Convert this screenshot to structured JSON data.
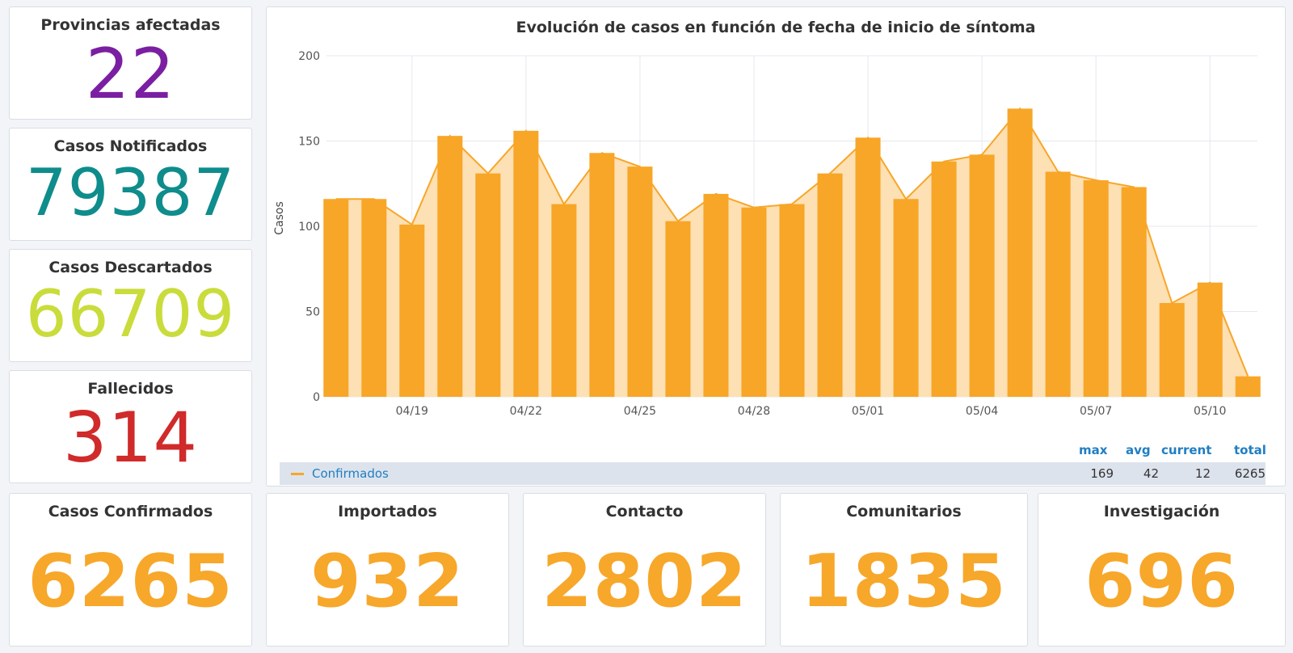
{
  "stats": {
    "provincias": {
      "title": "Provincias afectadas",
      "value": "22",
      "color": "#7b1fa2"
    },
    "notificados": {
      "title": "Casos Notificados",
      "value": "79387",
      "color": "#0f8c8c"
    },
    "descartados": {
      "title": "Casos Descartados",
      "value": "66709",
      "color": "#c9dc3b"
    },
    "fallecidos": {
      "title": "Fallecidos",
      "value": "314",
      "color": "#d02a2a"
    },
    "confirmados": {
      "title": "Casos Confirmados",
      "value": "6265",
      "color": "#f7a72a"
    },
    "importados": {
      "title": "Importados",
      "value": "932",
      "color": "#f7a72a"
    },
    "contacto": {
      "title": "Contacto",
      "value": "2802",
      "color": "#f7a72a"
    },
    "comunitarios": {
      "title": "Comunitarios",
      "value": "1835",
      "color": "#f7a72a"
    },
    "investigacion": {
      "title": "Investigación",
      "value": "696",
      "color": "#f7a72a"
    }
  },
  "chart_data": {
    "type": "bar",
    "title": "Evolución de casos en función de fecha de inicio de síntoma",
    "ylabel": "Casos",
    "ylim": [
      0,
      200
    ],
    "yticks": [
      0,
      50,
      100,
      150,
      200
    ],
    "xticks": [
      "04/19",
      "04/22",
      "04/25",
      "04/28",
      "05/01",
      "05/04",
      "05/07",
      "05/10"
    ],
    "grid": true,
    "series": [
      {
        "name": "Confirmados",
        "color": "#f8a627",
        "values": [
          116,
          116,
          101,
          153,
          131,
          156,
          113,
          143,
          135,
          103,
          119,
          111,
          113,
          131,
          152,
          116,
          138,
          142,
          169,
          132,
          127,
          123,
          55,
          67,
          12
        ]
      }
    ],
    "legend": {
      "headers": [
        "max",
        "avg",
        "current",
        "total"
      ],
      "values": [
        "169",
        "42",
        "12",
        "6265"
      ]
    }
  }
}
